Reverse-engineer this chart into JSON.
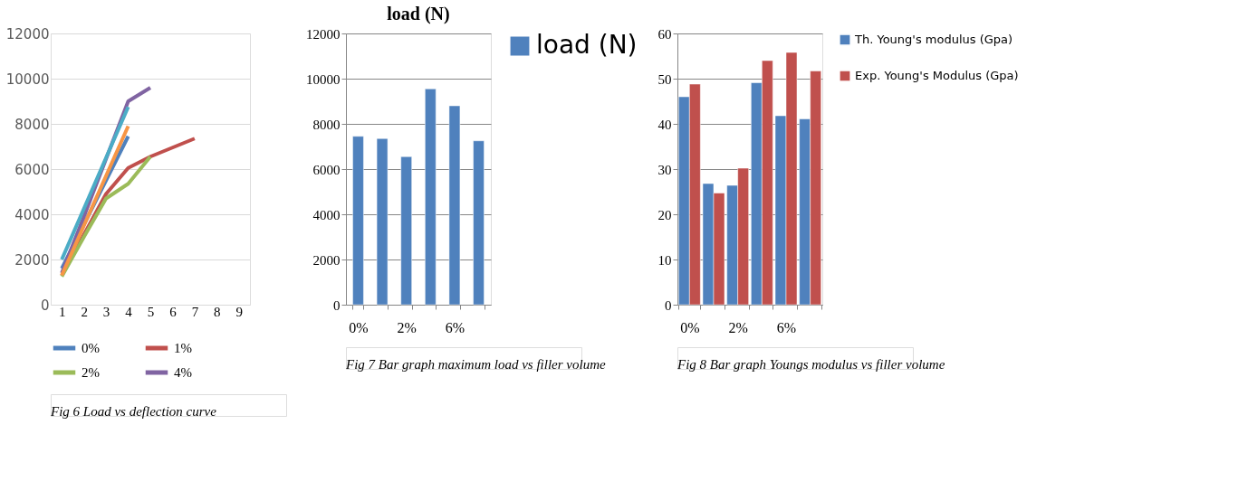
{
  "chart_data": [
    {
      "type": "line",
      "categories": [
        "1",
        "2",
        "3",
        "4",
        "5",
        "6",
        "7",
        "8",
        "9"
      ],
      "ylim": [
        0,
        12000
      ],
      "yticks": [
        0,
        2000,
        4000,
        6000,
        8000,
        10000,
        12000
      ],
      "grid": "y",
      "legend": "bottom",
      "line_style": "solid",
      "marker": "none",
      "series": [
        {
          "name": "0%",
          "color": "#4f81bd",
          "values": [
            1600,
            3550,
            5500,
            7450,
            null,
            null,
            null,
            null,
            null
          ]
        },
        {
          "name": "1%",
          "color": "#c0504d",
          "values": [
            1300,
            3100,
            4900,
            6050,
            6550,
            6950,
            7350,
            null,
            null
          ]
        },
        {
          "name": "2%",
          "color": "#9bbb59",
          "values": [
            1250,
            3000,
            4700,
            5350,
            6550,
            null,
            null,
            null,
            null
          ]
        },
        {
          "name": "4%",
          "color": "#8064a2",
          "values": [
            1400,
            3900,
            6450,
            9000,
            9600,
            null,
            null,
            null,
            null
          ]
        },
        {
          "color": "#4bacc6",
          "values": [
            2000,
            4250,
            6500,
            8750,
            null,
            null,
            null,
            null,
            null
          ]
        },
        {
          "color": "#f79646",
          "values": [
            1300,
            3500,
            5700,
            7900,
            null,
            null,
            null,
            null,
            null
          ]
        }
      ],
      "annotations": [
        "Fig 6  Load vs deflection curve"
      ]
    },
    {
      "type": "bar",
      "title": "load (N)",
      "categories": [
        "0%",
        null,
        "2%",
        null,
        "6%",
        null
      ],
      "ylim": [
        0,
        12000
      ],
      "yticks": [
        0,
        2000,
        4000,
        6000,
        8000,
        10000,
        12000
      ],
      "grid": "y",
      "legend": "right",
      "series": [
        {
          "name": "load (N)",
          "color": "#4f81bd",
          "values": [
            7450,
            7350,
            6550,
            9550,
            8800,
            7250
          ]
        }
      ],
      "annotations": [
        "Fig 7  Bar graph maximum load vs filler volume"
      ]
    },
    {
      "type": "bar",
      "categories": [
        "0%",
        null,
        "2%",
        null,
        "6%",
        null
      ],
      "ylim": [
        0,
        60
      ],
      "yticks": [
        0,
        10,
        20,
        30,
        40,
        50,
        60
      ],
      "grid": "y",
      "legend": "right",
      "series": [
        {
          "name": "Th. Young's modulus (Gpa)",
          "color": "#4f81bd",
          "values": [
            46,
            26.8,
            26.4,
            49.1,
            41.8,
            41.1
          ]
        },
        {
          "name": "Exp. Young's Modulus (Gpa)",
          "color": "#c0504d",
          "values": [
            48.8,
            24.7,
            30.2,
            54,
            55.8,
            51.7
          ]
        }
      ],
      "annotations": [
        "Fig 8 Bar graph Youngs modulus vs filler volume"
      ]
    }
  ]
}
